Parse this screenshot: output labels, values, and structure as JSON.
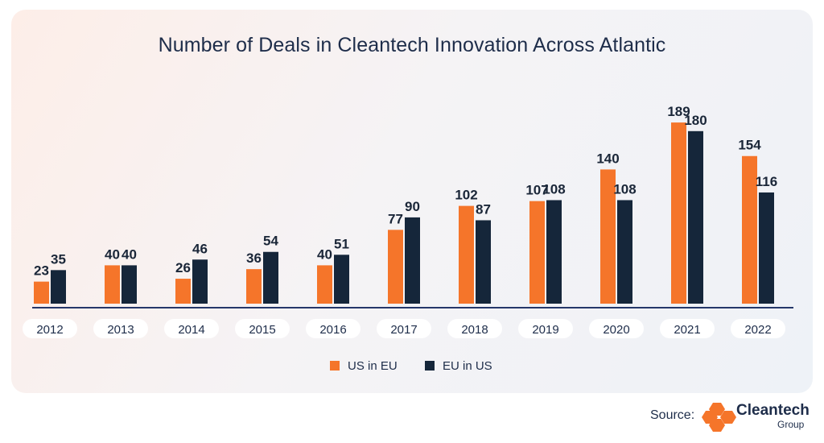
{
  "chart_data": {
    "type": "bar",
    "title": "Number of Deals in Cleantech Innovation Across Atlantic",
    "categories": [
      "2012",
      "2013",
      "2014",
      "2015",
      "2016",
      "2017",
      "2018",
      "2019",
      "2020",
      "2021",
      "2022"
    ],
    "series": [
      {
        "name": "US in EU",
        "color": "#f5752a",
        "values": [
          23,
          40,
          26,
          36,
          40,
          77,
          102,
          107,
          140,
          189,
          154
        ]
      },
      {
        "name": "EU in US",
        "color": "#15263a",
        "values": [
          35,
          40,
          46,
          54,
          51,
          90,
          87,
          108,
          108,
          180,
          116
        ]
      }
    ],
    "ylim": [
      0,
      200
    ],
    "grid": false,
    "legend": "bottom-center"
  },
  "source": {
    "label": "Source:",
    "logo_name": "Cleantech",
    "logo_sub": "Group"
  }
}
